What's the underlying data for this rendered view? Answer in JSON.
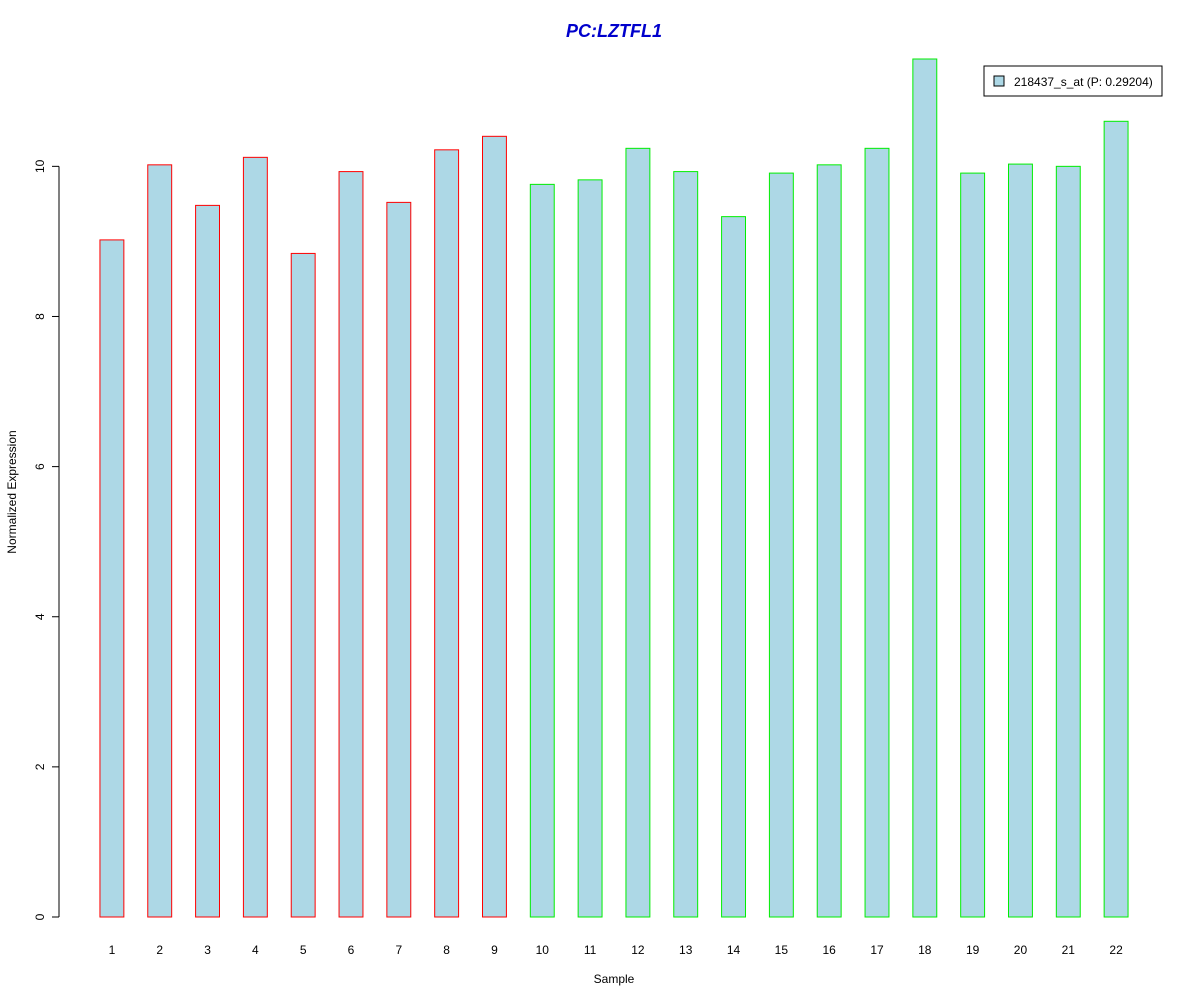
{
  "chart_data": {
    "type": "bar",
    "title": "PC:LZTFL1",
    "xlabel": "Sample",
    "ylabel": "Normalized Expression",
    "categories": [
      "1",
      "2",
      "3",
      "4",
      "5",
      "6",
      "7",
      "8",
      "9",
      "10",
      "11",
      "12",
      "13",
      "14",
      "15",
      "16",
      "17",
      "18",
      "19",
      "20",
      "21",
      "22"
    ],
    "series": [
      {
        "name": "218437_s_at (P: 0.29204)",
        "values": [
          9.02,
          10.02,
          9.48,
          10.12,
          8.84,
          9.93,
          9.52,
          10.22,
          10.4,
          9.76,
          9.82,
          10.24,
          9.93,
          9.33,
          9.91,
          10.02,
          10.24,
          11.43,
          9.91,
          10.03,
          10.0,
          10.6
        ]
      }
    ],
    "bar_groups": [
      1,
      1,
      1,
      1,
      1,
      1,
      1,
      1,
      1,
      2,
      2,
      2,
      2,
      2,
      2,
      2,
      2,
      2,
      2,
      2,
      2,
      2
    ],
    "ylim": [
      0,
      11.43
    ],
    "yticks": [
      0,
      2,
      4,
      6,
      8,
      10
    ],
    "legend_position": "top-right",
    "grid": false,
    "colors": {
      "bar_fill": "#add8e6",
      "group1_border": "#ff0000",
      "group2_border": "#00ee00",
      "title": "#0000cc",
      "axis": "#000000"
    }
  }
}
